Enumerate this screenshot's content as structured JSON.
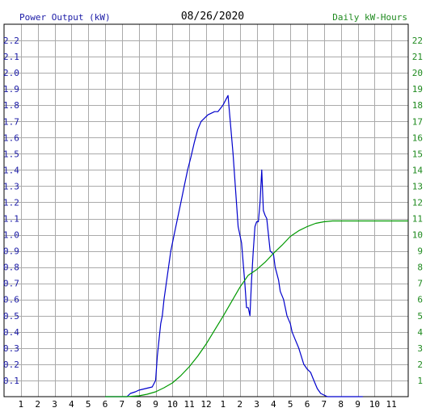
{
  "colors": {
    "power": "#0000cc",
    "energy": "#009900",
    "left_label": "#1a1aa6",
    "right_label": "#1f8a1f",
    "grid": "#aaaaaa"
  },
  "chart_data": {
    "type": "line",
    "title": "08/26/2020",
    "ylabel": "Power Output (kW)",
    "y2label": "Daily kW-Hours",
    "x_ticks": [
      "1",
      "2",
      "3",
      "4",
      "5",
      "6",
      "7",
      "8",
      "9",
      "10",
      "11",
      "12",
      "1",
      "2",
      "3",
      "4",
      "5",
      "6",
      "7",
      "8",
      "9",
      "10",
      "11"
    ],
    "xlim": [
      0,
      24
    ],
    "ylim": [
      0,
      2.3
    ],
    "y2lim": [
      0,
      23
    ],
    "y_ticks": [
      "0.1",
      "0.2",
      "0.3",
      "0.4",
      "0.5",
      "0.6",
      "0.7",
      "0.8",
      "0.9",
      "1.0",
      "1.1",
      "1.2",
      "1.3",
      "1.4",
      "1.5",
      "1.6",
      "1.7",
      "1.8",
      "1.9",
      "2.0",
      "2.1",
      "2.2"
    ],
    "y2_ticks": [
      "1",
      "2",
      "3",
      "4",
      "5",
      "6",
      "7",
      "8",
      "9",
      "10",
      "11",
      "12",
      "13",
      "14",
      "15",
      "16",
      "17",
      "18",
      "19",
      "20",
      "21",
      "22"
    ],
    "grid": true,
    "series": [
      {
        "name": "Power Output (kW)",
        "axis": "left",
        "x": [
          6.0,
          7.3,
          7.5,
          7.8,
          8.0,
          8.4,
          8.8,
          9.0,
          9.1,
          9.2,
          9.3,
          9.4,
          9.5,
          9.7,
          9.9,
          10.1,
          10.3,
          10.5,
          10.7,
          10.9,
          11.1,
          11.3,
          11.5,
          11.7,
          11.9,
          12.1,
          12.3,
          12.5,
          12.7,
          13.0,
          13.3,
          13.6,
          13.9,
          14.1,
          14.3,
          14.4,
          14.5,
          14.6,
          14.7,
          14.8,
          14.9,
          15.0,
          15.1,
          15.2,
          15.3,
          15.4,
          15.5,
          15.6,
          15.8,
          16.0,
          16.1,
          16.2,
          16.3,
          16.4,
          16.6,
          16.8,
          17.0,
          17.1,
          17.3,
          17.5,
          17.8,
          18.0,
          18.2,
          18.4,
          18.6,
          18.8,
          19.0,
          19.2,
          19.4,
          19.6,
          19.8,
          20.0,
          20.5,
          21.0,
          21.3
        ],
        "y": [
          0,
          0,
          0.02,
          0.03,
          0.04,
          0.05,
          0.06,
          0.1,
          0.25,
          0.35,
          0.45,
          0.5,
          0.6,
          0.75,
          0.9,
          1.0,
          1.1,
          1.2,
          1.3,
          1.4,
          1.48,
          1.57,
          1.65,
          1.7,
          1.72,
          1.74,
          1.75,
          1.76,
          1.76,
          1.8,
          1.86,
          1.5,
          1.05,
          0.95,
          0.7,
          0.55,
          0.55,
          0.5,
          0.72,
          0.9,
          1.05,
          1.08,
          1.08,
          1.2,
          1.4,
          1.15,
          1.12,
          1.1,
          0.9,
          0.88,
          0.8,
          0.76,
          0.72,
          0.65,
          0.6,
          0.5,
          0.45,
          0.4,
          0.35,
          0.3,
          0.2,
          0.17,
          0.15,
          0.1,
          0.05,
          0.02,
          0.01,
          0,
          0,
          0,
          0,
          0,
          0,
          0,
          0
        ]
      },
      {
        "name": "Daily kW-Hours",
        "axis": "right",
        "x": [
          6.0,
          7.3,
          8.0,
          8.5,
          9.0,
          9.5,
          10.0,
          10.5,
          11.0,
          11.5,
          12.0,
          12.5,
          13.0,
          13.5,
          14.0,
          14.5,
          15.0,
          15.5,
          16.0,
          16.5,
          17.0,
          17.5,
          18.0,
          18.5,
          19.0,
          19.5,
          20.0,
          21.0,
          22.0,
          23.0,
          24.0
        ],
        "y": [
          0,
          0,
          0.05,
          0.15,
          0.3,
          0.55,
          0.85,
          1.3,
          1.85,
          2.5,
          3.25,
          4.1,
          4.95,
          5.85,
          6.75,
          7.5,
          7.85,
          8.3,
          8.85,
          9.35,
          9.9,
          10.25,
          10.5,
          10.7,
          10.8,
          10.85,
          10.85,
          10.85,
          10.85,
          10.85,
          10.85
        ]
      }
    ]
  }
}
